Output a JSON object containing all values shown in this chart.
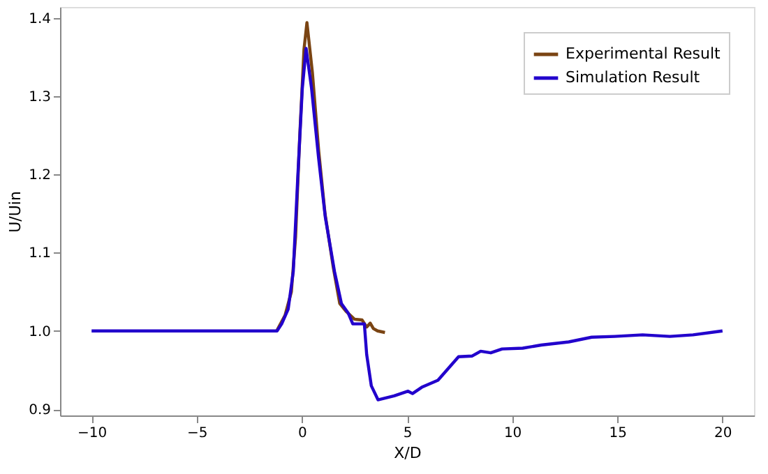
{
  "chart_data": {
    "type": "line",
    "xlabel": "X/D",
    "ylabel": "U/Uin",
    "xlim": [
      -11.5,
      21.5
    ],
    "ylim": [
      0.892,
      1.414
    ],
    "xticks": [
      -10,
      -5,
      0,
      5,
      10,
      15,
      20
    ],
    "yticks": [
      0.9,
      {
        "value": 1,
        "label": "1.0"
      },
      1.1,
      1.2,
      1.3,
      1.4
    ],
    "grid": false,
    "legend": "top right",
    "marker": "none",
    "line_style": "solid",
    "series": [
      {
        "name": "Experimental Result",
        "color": "#7a4413",
        "x": [
          -1.2,
          -0.8,
          -0.5,
          -0.3,
          -0.1,
          0.1,
          0.24,
          0.5,
          0.8,
          1.1,
          1.5,
          1.8,
          2.1,
          2.5,
          2.86,
          3.08,
          3.25,
          3.4,
          3.6,
          3.95
        ],
        "values": [
          1.0,
          1.02,
          1.05,
          1.12,
          1.25,
          1.36,
          1.394,
          1.33,
          1.23,
          1.15,
          1.08,
          1.035,
          1.025,
          1.015,
          1.014,
          1.005,
          1.01,
          1.003,
          1.0,
          0.998
        ]
      },
      {
        "name": "Simulation Result",
        "color": "#2200cc",
        "x": [
          -10,
          -1.18,
          -0.96,
          -0.65,
          -0.41,
          -0.2,
          0.02,
          0.2,
          0.46,
          0.79,
          1.11,
          1.55,
          1.88,
          2.2,
          2.42,
          2.97,
          3.08,
          3.3,
          3.62,
          4.39,
          5.05,
          5.26,
          5.7,
          6.47,
          7.45,
          8.1,
          8.5,
          8.98,
          9.52,
          10.5,
          11.38,
          12.69,
          13.78,
          14.87,
          16.2,
          17.5,
          18.6,
          20
        ],
        "values": [
          1.0,
          1.0,
          1.009,
          1.028,
          1.076,
          1.194,
          1.31,
          1.361,
          1.31,
          1.222,
          1.146,
          1.076,
          1.035,
          1.023,
          1.009,
          1.009,
          0.97,
          0.93,
          0.912,
          0.917,
          0.923,
          0.92,
          0.928,
          0.937,
          0.967,
          0.968,
          0.974,
          0.972,
          0.977,
          0.978,
          0.982,
          0.986,
          0.992,
          0.993,
          0.995,
          0.993,
          0.995,
          1.0
        ]
      }
    ]
  }
}
